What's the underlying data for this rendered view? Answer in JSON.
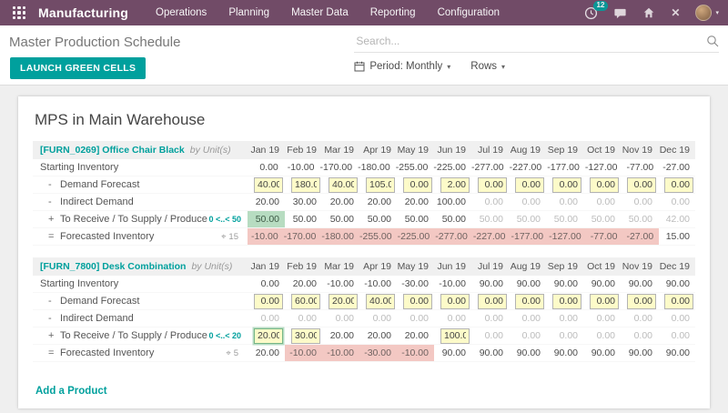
{
  "colors": {
    "bar": "#714B67",
    "accent": "#00A09D",
    "cell_yellow": "#FDFBC9",
    "cell_green": "#B7DCC1",
    "cell_red": "#F3C8C3"
  },
  "icons": {
    "caret": "▾",
    "close": "✕",
    "target": "⌖"
  },
  "topbar": {
    "app_name": "Manufacturing",
    "menus": [
      "Operations",
      "Planning",
      "Master Data",
      "Reporting",
      "Configuration"
    ],
    "systray": {
      "activity_count": "12"
    }
  },
  "control_panel": {
    "breadcrumb": "Master Production Schedule",
    "launch_button": "LAUNCH GREEN CELLS",
    "search_placeholder": "Search...",
    "period_filter": "Period: Monthly",
    "rows_filter": "Rows"
  },
  "sheet": {
    "title": "MPS in Main Warehouse",
    "add_product": "Add a Product",
    "months": [
      "Jan 19",
      "Feb 19",
      "Mar 19",
      "Apr 19",
      "May 19",
      "Jun 19",
      "Jul 19",
      "Aug 19",
      "Sep 19",
      "Oct 19",
      "Nov 19",
      "Dec 19"
    ],
    "products": [
      {
        "name": "[FURN_0269] Office Chair Black",
        "by_label": "by",
        "uom": "Unit(s)",
        "rows": [
          {
            "key": "starting-inventory",
            "op": "",
            "label": "Starting Inventory",
            "cells": [
              {
                "v": "0.00",
                "t": "plain"
              },
              {
                "v": "-10.00",
                "t": "plain"
              },
              {
                "v": "-170.00",
                "t": "plain"
              },
              {
                "v": "-180.00",
                "t": "plain"
              },
              {
                "v": "-255.00",
                "t": "plain"
              },
              {
                "v": "-225.00",
                "t": "plain"
              },
              {
                "v": "-277.00",
                "t": "plain"
              },
              {
                "v": "-227.00",
                "t": "plain"
              },
              {
                "v": "-177.00",
                "t": "plain"
              },
              {
                "v": "-127.00",
                "t": "plain"
              },
              {
                "v": "-77.00",
                "t": "plain"
              },
              {
                "v": "-27.00",
                "t": "plain"
              }
            ]
          },
          {
            "key": "demand-forecast",
            "op": "-",
            "label": "Demand Forecast",
            "cells": [
              {
                "v": "40.00",
                "t": "input"
              },
              {
                "v": "180.00",
                "t": "input"
              },
              {
                "v": "40.00",
                "t": "input"
              },
              {
                "v": "105.00",
                "t": "input"
              },
              {
                "v": "0.00",
                "t": "input"
              },
              {
                "v": "2.00",
                "t": "input"
              },
              {
                "v": "0.00",
                "t": "input"
              },
              {
                "v": "0.00",
                "t": "input"
              },
              {
                "v": "0.00",
                "t": "input"
              },
              {
                "v": "0.00",
                "t": "input"
              },
              {
                "v": "0.00",
                "t": "input"
              },
              {
                "v": "0.00",
                "t": "input"
              }
            ]
          },
          {
            "key": "indirect-demand",
            "op": "-",
            "label": "Indirect Demand",
            "cells": [
              {
                "v": "20.00",
                "t": "plain"
              },
              {
                "v": "30.00",
                "t": "plain"
              },
              {
                "v": "20.00",
                "t": "plain"
              },
              {
                "v": "20.00",
                "t": "plain"
              },
              {
                "v": "20.00",
                "t": "plain"
              },
              {
                "v": "100.00",
                "t": "plain"
              },
              {
                "v": "0.00",
                "t": "muted"
              },
              {
                "v": "0.00",
                "t": "muted"
              },
              {
                "v": "0.00",
                "t": "muted"
              },
              {
                "v": "0.00",
                "t": "muted"
              },
              {
                "v": "0.00",
                "t": "muted"
              },
              {
                "v": "0.00",
                "t": "muted"
              }
            ]
          },
          {
            "key": "to-supply",
            "op": "+",
            "label": "To Receive / To Supply / Produce",
            "range": "0 <..< 50",
            "cells": [
              {
                "v": "50.00",
                "t": "green"
              },
              {
                "v": "50.00",
                "t": "plain"
              },
              {
                "v": "50.00",
                "t": "plain"
              },
              {
                "v": "50.00",
                "t": "plain"
              },
              {
                "v": "50.00",
                "t": "plain"
              },
              {
                "v": "50.00",
                "t": "plain"
              },
              {
                "v": "50.00",
                "t": "muted"
              },
              {
                "v": "50.00",
                "t": "muted"
              },
              {
                "v": "50.00",
                "t": "muted"
              },
              {
                "v": "50.00",
                "t": "muted"
              },
              {
                "v": "50.00",
                "t": "muted"
              },
              {
                "v": "42.00",
                "t": "muted"
              }
            ]
          },
          {
            "key": "forecasted-inventory",
            "op": "=",
            "label": "Forecasted Inventory",
            "target": "15",
            "cells": [
              {
                "v": "-10.00",
                "t": "red"
              },
              {
                "v": "-170.00",
                "t": "red"
              },
              {
                "v": "-180.00",
                "t": "red"
              },
              {
                "v": "-255.00",
                "t": "red"
              },
              {
                "v": "-225.00",
                "t": "red"
              },
              {
                "v": "-277.00",
                "t": "red"
              },
              {
                "v": "-227.00",
                "t": "red"
              },
              {
                "v": "-177.00",
                "t": "red"
              },
              {
                "v": "-127.00",
                "t": "red"
              },
              {
                "v": "-77.00",
                "t": "red"
              },
              {
                "v": "-27.00",
                "t": "red"
              },
              {
                "v": "15.00",
                "t": "plain"
              }
            ]
          }
        ]
      },
      {
        "name": "[FURN_7800] Desk Combination",
        "by_label": "by",
        "uom": "Unit(s)",
        "rows": [
          {
            "key": "starting-inventory",
            "op": "",
            "label": "Starting Inventory",
            "cells": [
              {
                "v": "0.00",
                "t": "plain"
              },
              {
                "v": "20.00",
                "t": "plain"
              },
              {
                "v": "-10.00",
                "t": "plain"
              },
              {
                "v": "-10.00",
                "t": "plain"
              },
              {
                "v": "-30.00",
                "t": "plain"
              },
              {
                "v": "-10.00",
                "t": "plain"
              },
              {
                "v": "90.00",
                "t": "plain"
              },
              {
                "v": "90.00",
                "t": "plain"
              },
              {
                "v": "90.00",
                "t": "plain"
              },
              {
                "v": "90.00",
                "t": "plain"
              },
              {
                "v": "90.00",
                "t": "plain"
              },
              {
                "v": "90.00",
                "t": "plain"
              }
            ]
          },
          {
            "key": "demand-forecast",
            "op": "-",
            "label": "Demand Forecast",
            "cells": [
              {
                "v": "0.00",
                "t": "input"
              },
              {
                "v": "60.00",
                "t": "input"
              },
              {
                "v": "20.00",
                "t": "input"
              },
              {
                "v": "40.00",
                "t": "input"
              },
              {
                "v": "0.00",
                "t": "input"
              },
              {
                "v": "0.00",
                "t": "input"
              },
              {
                "v": "0.00",
                "t": "input"
              },
              {
                "v": "0.00",
                "t": "input"
              },
              {
                "v": "0.00",
                "t": "input"
              },
              {
                "v": "0.00",
                "t": "input"
              },
              {
                "v": "0.00",
                "t": "input"
              },
              {
                "v": "0.00",
                "t": "input"
              }
            ]
          },
          {
            "key": "indirect-demand",
            "op": "-",
            "label": "Indirect Demand",
            "cells": [
              {
                "v": "0.00",
                "t": "muted"
              },
              {
                "v": "0.00",
                "t": "muted"
              },
              {
                "v": "0.00",
                "t": "muted"
              },
              {
                "v": "0.00",
                "t": "muted"
              },
              {
                "v": "0.00",
                "t": "muted"
              },
              {
                "v": "0.00",
                "t": "muted"
              },
              {
                "v": "0.00",
                "t": "muted"
              },
              {
                "v": "0.00",
                "t": "muted"
              },
              {
                "v": "0.00",
                "t": "muted"
              },
              {
                "v": "0.00",
                "t": "muted"
              },
              {
                "v": "0.00",
                "t": "muted"
              },
              {
                "v": "0.00",
                "t": "muted"
              }
            ]
          },
          {
            "key": "to-supply",
            "op": "+",
            "label": "To Receive / To Supply / Produce",
            "range": "0 <..< 20",
            "cells": [
              {
                "v": "20.00",
                "t": "input_green"
              },
              {
                "v": "30.00",
                "t": "input"
              },
              {
                "v": "20.00",
                "t": "plain"
              },
              {
                "v": "20.00",
                "t": "plain"
              },
              {
                "v": "20.00",
                "t": "plain"
              },
              {
                "v": "100.00",
                "t": "input"
              },
              {
                "v": "0.00",
                "t": "muted"
              },
              {
                "v": "0.00",
                "t": "muted"
              },
              {
                "v": "0.00",
                "t": "muted"
              },
              {
                "v": "0.00",
                "t": "muted"
              },
              {
                "v": "0.00",
                "t": "muted"
              },
              {
                "v": "0.00",
                "t": "muted"
              }
            ]
          },
          {
            "key": "forecasted-inventory",
            "op": "=",
            "label": "Forecasted Inventory",
            "target": "5",
            "cells": [
              {
                "v": "20.00",
                "t": "plain"
              },
              {
                "v": "-10.00",
                "t": "red"
              },
              {
                "v": "-10.00",
                "t": "red"
              },
              {
                "v": "-30.00",
                "t": "red"
              },
              {
                "v": "-10.00",
                "t": "red"
              },
              {
                "v": "90.00",
                "t": "plain"
              },
              {
                "v": "90.00",
                "t": "plain"
              },
              {
                "v": "90.00",
                "t": "plain"
              },
              {
                "v": "90.00",
                "t": "plain"
              },
              {
                "v": "90.00",
                "t": "plain"
              },
              {
                "v": "90.00",
                "t": "plain"
              },
              {
                "v": "90.00",
                "t": "plain"
              }
            ]
          }
        ]
      }
    ]
  }
}
